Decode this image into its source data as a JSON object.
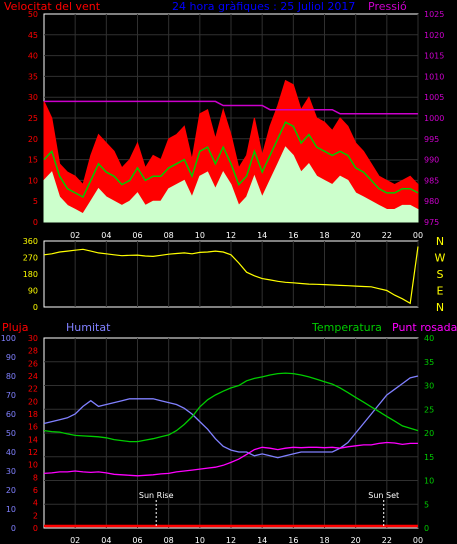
{
  "colors": {
    "background": "#000000",
    "frame": "#ffffff",
    "grid": "#303030",
    "wind": "#ff0000",
    "gust": "#ff0000",
    "wind_avg": "#00cc00",
    "wind_low": "#ccffcc",
    "pressure": "#cc00cc",
    "direction": "#ffff00",
    "axis_dir": "#ffff00",
    "rain": "#ff0000",
    "humidity": "#8080ff",
    "temperature": "#00cc00",
    "dewpoint": "#ff00ff",
    "sun": "#ffffff"
  },
  "time_ticks": [
    "02",
    "04",
    "06",
    "08",
    "10",
    "12",
    "14",
    "16",
    "18",
    "20",
    "22",
    "00"
  ],
  "chart_data": [
    {
      "type": "line",
      "title": "24 hora gràfiques : 25 Juliol 2017",
      "left_axis_label": "Velocitat del vent",
      "right_axis_label": "Pressió",
      "left_ticks": [
        "0",
        "5",
        "10",
        "15",
        "20",
        "25",
        "30",
        "35",
        "40",
        "45",
        "50"
      ],
      "right_ticks": [
        "975",
        "980",
        "985",
        "990",
        "995",
        "1000",
        "1005",
        "1010",
        "1015",
        "1020",
        "1025"
      ],
      "ylim_left": [
        0,
        50
      ],
      "ylim_right": [
        975,
        1025
      ],
      "x_hours": [
        0,
        0.5,
        1,
        1.5,
        2,
        2.5,
        3,
        3.5,
        4,
        4.5,
        5,
        5.5,
        6,
        6.5,
        7,
        7.5,
        8,
        8.5,
        9,
        9.5,
        10,
        10.5,
        11,
        11.5,
        12,
        12.5,
        13,
        13.5,
        14,
        14.5,
        15,
        15.5,
        16,
        16.5,
        17,
        17.5,
        18,
        18.5,
        19,
        19.5,
        20,
        20.5,
        21,
        21.5,
        22,
        22.5,
        23,
        23.5,
        24
      ],
      "series": [
        {
          "name": "Ratxa",
          "values": [
            29,
            25,
            14,
            12,
            11,
            9,
            16,
            21,
            19,
            17,
            13,
            15,
            19,
            13,
            16,
            15,
            20,
            21,
            23,
            15,
            26,
            27,
            20,
            27,
            21,
            13,
            16,
            25,
            16,
            23,
            28,
            34,
            33,
            27,
            30,
            25,
            24,
            22,
            25,
            23,
            19,
            17,
            14,
            11,
            10,
            9,
            10,
            11,
            9
          ]
        },
        {
          "name": "Velocitat",
          "values": [
            15,
            17,
            11,
            8,
            7,
            6,
            10,
            14,
            12,
            11,
            9,
            10,
            13,
            10,
            11,
            11,
            13,
            14,
            15,
            11,
            17,
            18,
            14,
            18,
            14,
            9,
            11,
            17,
            12,
            16,
            20,
            24,
            23,
            19,
            21,
            18,
            17,
            16,
            17,
            16,
            13,
            12,
            10,
            8,
            7,
            7,
            8,
            8,
            7
          ]
        },
        {
          "name": "Mínim",
          "values": [
            10,
            12,
            6,
            4,
            3,
            2,
            5,
            8,
            6,
            5,
            4,
            5,
            7,
            4,
            5,
            5,
            8,
            9,
            10,
            6,
            11,
            12,
            8,
            12,
            9,
            4,
            6,
            11,
            6,
            10,
            14,
            18,
            16,
            12,
            14,
            11,
            10,
            9,
            11,
            10,
            7,
            6,
            5,
            4,
            3,
            3,
            4,
            4,
            3
          ]
        },
        {
          "name": "Pressió",
          "values": [
            1004,
            1004,
            1004,
            1004,
            1004,
            1004,
            1004,
            1004,
            1004,
            1004,
            1004,
            1004,
            1004,
            1004,
            1004,
            1004,
            1004,
            1004,
            1004,
            1004,
            1004,
            1004,
            1004,
            1003,
            1003,
            1003,
            1003,
            1003,
            1003,
            1002,
            1002,
            1002,
            1002,
            1002,
            1002,
            1002,
            1002,
            1002,
            1001,
            1001,
            1001,
            1001,
            1001,
            1001,
            1001,
            1001,
            1001,
            1001,
            1001
          ]
        }
      ]
    },
    {
      "type": "line",
      "left_ticks": [
        "0",
        "90",
        "180",
        "270",
        "360"
      ],
      "right_labels": [
        "N",
        "W",
        "S",
        "E",
        "N"
      ],
      "ylim": [
        0,
        360
      ],
      "x_hours": [
        0,
        0.5,
        1,
        1.5,
        2,
        2.5,
        3,
        3.5,
        4,
        4.5,
        5,
        5.5,
        6,
        6.5,
        7,
        7.5,
        8,
        8.5,
        9,
        9.5,
        10,
        10.5,
        11,
        11.5,
        12,
        12.5,
        13,
        13.5,
        14,
        14.5,
        15,
        15.5,
        16,
        16.5,
        17,
        17.5,
        18,
        18.5,
        19,
        19.5,
        20,
        20.5,
        21,
        21.5,
        22,
        22.5,
        23,
        23.5,
        24
      ],
      "series": [
        {
          "name": "Direcció",
          "values": [
            285,
            290,
            300,
            305,
            310,
            315,
            305,
            295,
            290,
            285,
            280,
            282,
            283,
            278,
            276,
            282,
            288,
            292,
            295,
            290,
            298,
            300,
            305,
            300,
            285,
            240,
            190,
            170,
            155,
            148,
            140,
            135,
            132,
            128,
            125,
            124,
            122,
            120,
            118,
            116,
            114,
            112,
            110,
            100,
            90,
            65,
            45,
            20,
            330
          ]
        }
      ]
    },
    {
      "type": "line",
      "rain_label": "Pluja",
      "humidity_label": "Humitat",
      "temperature_label": "Temperatura",
      "dewpoint_label": "Punt rosada",
      "rain_ticks": [
        "0",
        "2",
        "4",
        "6",
        "8",
        "10",
        "12",
        "14",
        "16",
        "18",
        "20",
        "22",
        "24",
        "26",
        "28",
        "30"
      ],
      "humidity_ticks": [
        "0",
        "10",
        "20",
        "30",
        "40",
        "50",
        "60",
        "70",
        "80",
        "90",
        "100"
      ],
      "temp_ticks": [
        "0",
        "5",
        "10",
        "15",
        "20",
        "25",
        "30",
        "35",
        "40"
      ],
      "ylim_humidity": [
        0,
        100
      ],
      "ylim_temp": [
        0,
        40
      ],
      "ylim_rain": [
        0,
        30
      ],
      "sun_rise_label": "Sun Rise",
      "sun_set_label": "Sun Set",
      "sun_rise_hour": 7.2,
      "sun_set_hour": 21.8,
      "x_hours": [
        0,
        0.5,
        1,
        1.5,
        2,
        2.5,
        3,
        3.5,
        4,
        4.5,
        5,
        5.5,
        6,
        6.5,
        7,
        7.5,
        8,
        8.5,
        9,
        9.5,
        10,
        10.5,
        11,
        11.5,
        12,
        12.5,
        13,
        13.5,
        14,
        14.5,
        15,
        15.5,
        16,
        16.5,
        17,
        17.5,
        18,
        18.5,
        19,
        19.5,
        20,
        20.5,
        21,
        21.5,
        22,
        22.5,
        23,
        23.5,
        24
      ],
      "series": [
        {
          "name": "Humitat",
          "values": [
            55,
            56,
            57,
            58,
            60,
            64,
            67,
            64,
            65,
            66,
            67,
            68,
            68,
            68,
            68,
            67,
            66,
            65,
            63,
            60,
            56,
            52,
            47,
            43,
            41,
            40,
            40,
            38,
            39,
            38,
            37,
            38,
            39,
            40,
            40,
            40,
            40,
            40,
            42,
            45,
            50,
            55,
            60,
            65,
            70,
            73,
            76,
            79,
            80
          ]
        },
        {
          "name": "Temperatura",
          "values": [
            20.5,
            20.3,
            20.2,
            19.8,
            19.5,
            19.4,
            19.3,
            19.2,
            19.0,
            18.6,
            18.4,
            18.2,
            18.2,
            18.5,
            18.8,
            19.2,
            19.6,
            20.5,
            21.8,
            23.4,
            25.5,
            27.0,
            28.0,
            28.8,
            29.5,
            30.0,
            31.0,
            31.5,
            31.8,
            32.2,
            32.5,
            32.6,
            32.5,
            32.2,
            31.8,
            31.3,
            30.8,
            30.3,
            29.5,
            28.5,
            27.5,
            26.5,
            25.5,
            24.5,
            23.5,
            22.5,
            21.5,
            21.0,
            20.5
          ]
        },
        {
          "name": "Punt rosada",
          "values": [
            11.5,
            11.6,
            11.8,
            11.8,
            12.0,
            11.8,
            11.7,
            11.8,
            11.6,
            11.3,
            11.2,
            11.1,
            11.0,
            11.1,
            11.2,
            11.4,
            11.5,
            11.8,
            12.0,
            12.2,
            12.4,
            12.6,
            12.8,
            13.2,
            13.8,
            14.5,
            15.5,
            16.5,
            17.0,
            16.8,
            16.5,
            16.8,
            17.0,
            16.9,
            17.0,
            17.0,
            16.9,
            17.0,
            16.8,
            17.1,
            17.3,
            17.5,
            17.5,
            17.8,
            18.0,
            17.9,
            17.6,
            17.8,
            17.8
          ]
        },
        {
          "name": "Pluja",
          "values": [
            0,
            0,
            0,
            0,
            0,
            0,
            0,
            0,
            0,
            0,
            0,
            0,
            0,
            0,
            0,
            0,
            0,
            0,
            0,
            0,
            0,
            0,
            0,
            0,
            0,
            0,
            0,
            0,
            0,
            0,
            0,
            0,
            0,
            0,
            0,
            0,
            0,
            0,
            0,
            0,
            0,
            0,
            0,
            0,
            0,
            0,
            0,
            0,
            0
          ]
        }
      ]
    }
  ]
}
